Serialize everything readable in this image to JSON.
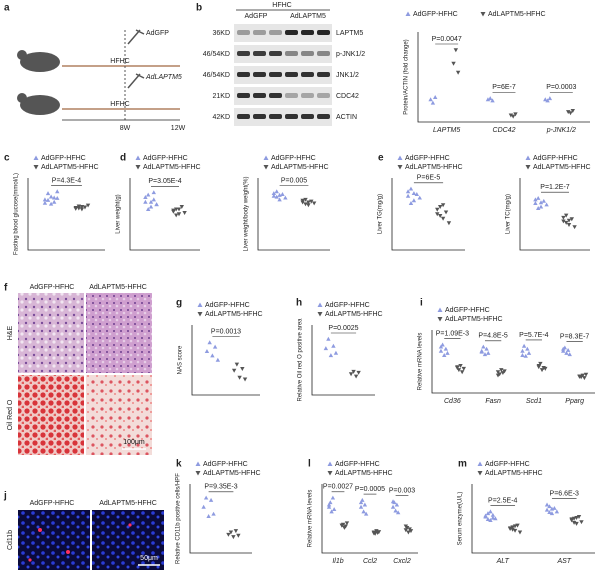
{
  "figure": {
    "panels": {
      "a": {
        "letter": "a",
        "diet_top": "HFHC",
        "virus_top": "AdGFP",
        "diet_bottom": "HFHC",
        "virus_bottom": "AdLAPTM5",
        "start": "8W",
        "end": "12W"
      },
      "b": {
        "letter": "b",
        "header": "HFHC",
        "groups": [
          "AdGFP",
          "AdLAPTM5"
        ],
        "kd": [
          "36KD",
          "46/54KD",
          "46/54KD",
          "21KD",
          "42KD"
        ],
        "proteins": [
          "LAPTM5",
          "p-JNK1/2",
          "JNK1/2",
          "CDC42",
          "ACTIN"
        ]
      },
      "f": {
        "letter": "f",
        "columns": [
          "AdGFP-HFHC",
          "AdLAPTM5-HFHC"
        ],
        "rows": [
          "H&E",
          "Oil Red O"
        ],
        "scale": "100μm"
      },
      "j": {
        "letter": "j",
        "columns": [
          "AdGFP-HFHC",
          "AdLAPTM5-HFHC"
        ],
        "row": "Cd11b",
        "scale": "50μm"
      }
    },
    "plots": [
      {
        "type": "scatter",
        "ylabel": "Protein/ACTIN (fold change)",
        "ylim": [
          0,
          4
        ],
        "categories": [
          "LAPTM5",
          "CDC42",
          "p-JNK1/2"
        ],
        "pvalues": [
          "P=0.0047",
          "P=6E-7",
          "P=0.0003"
        ],
        "series": [
          {
            "name": "AdGFP-HFHC",
            "color": "#8e9be0",
            "values": [
              [
                1.0,
                0.85,
                1.1
              ],
              [
                1.0,
                1.05,
                0.95
              ],
              [
                1.0,
                0.95,
                1.05
              ]
            ]
          },
          {
            "name": "AdLAPTM5-HFHC",
            "color": "#555555",
            "values": [
              [
                2.6,
                3.2,
                2.2
              ],
              [
                0.3,
                0.25,
                0.35
              ],
              [
                0.45,
                0.4,
                0.5
              ]
            ]
          }
        ]
      },
      {
        "type": "scatter",
        "letter": "c",
        "ylabel": "Fasting blood glucose(mmol/L)",
        "ylim": [
          0,
          15
        ],
        "pvalues": [
          "P=4.3E-4"
        ],
        "series": [
          {
            "name": "AdGFP-HFHC",
            "color": "#8e9be0",
            "values": [
              [
                10.5,
                11.8,
                9.6,
                10.9,
                12.2,
                9.8,
                10.4,
                11.1,
                10.0,
                10.8
              ]
            ]
          },
          {
            "name": "AdLAPTM5-HFHC",
            "color": "#555555",
            "values": [
              [
                8.8,
                9.1,
                8.5,
                8.9,
                9.3,
                8.6,
                8.7,
                9.0
              ]
            ]
          }
        ]
      },
      {
        "type": "scatter",
        "letter": "d",
        "ylabel": "Liver weight(g)",
        "ylim": [
          0,
          3
        ],
        "pvalues": [
          "P=3.05E-4"
        ],
        "series": [
          {
            "name": "AdGFP-HFHC",
            "color": "#8e9be0",
            "values": [
              [
                2.0,
                2.3,
                1.8,
                2.1,
                1.9,
                2.2,
                1.7,
                2.0,
                2.4,
                1.9
              ]
            ]
          },
          {
            "name": "AdLAPTM5-HFHC",
            "color": "#555555",
            "values": [
              [
                1.6,
                1.7,
                1.5,
                1.8,
                1.55,
                1.65,
                1.45,
                1.7
              ]
            ]
          }
        ]
      },
      {
        "type": "scatter",
        "ylabel": "Liver weight/body weight(%)",
        "ylim": [
          0,
          8
        ],
        "pvalues": [
          "P=0.005"
        ],
        "series": [
          {
            "name": "AdGFP-HFHC",
            "color": "#8e9be0",
            "values": [
              [
                6.0,
                6.5,
                5.6,
                6.2,
                5.8,
                6.3,
                5.9,
                6.1
              ]
            ]
          },
          {
            "name": "AdLAPTM5-HFHC",
            "color": "#555555",
            "values": [
              [
                5.3,
                5.6,
                5.0,
                5.4,
                5.2,
                5.5,
                5.1,
                5.3
              ]
            ]
          }
        ]
      },
      {
        "type": "scatter",
        "letter": "e",
        "ylabel": "Liver TG(mg/g)",
        "ylim": [
          0,
          80
        ],
        "pvalues": [
          "P=6E-5"
        ],
        "series": [
          {
            "name": "AdGFP-HFHC",
            "color": "#8e9be0",
            "values": [
              [
                60,
                68,
                55,
                62,
                58,
                65,
                52,
                63
              ]
            ]
          },
          {
            "name": "AdLAPTM5-HFHC",
            "color": "#555555",
            "values": [
              [
                40,
                48,
                35,
                42,
                30,
                45,
                38,
                50
              ]
            ]
          }
        ]
      },
      {
        "type": "scatter",
        "ylabel": "Liver TC(mg/g)",
        "ylim": [
          0,
          10
        ],
        "pvalues": [
          "P=1.2E-7"
        ],
        "series": [
          {
            "name": "AdGFP-HFHC",
            "color": "#8e9be0",
            "values": [
              [
                6.5,
                7.2,
                6.0,
                6.8,
                6.3,
                7.0,
                5.8,
                6.6
              ]
            ]
          },
          {
            "name": "AdLAPTM5-HFHC",
            "color": "#555555",
            "values": [
              [
                4.0,
                4.8,
                3.5,
                4.3,
                3.2,
                4.5,
                3.8,
                4.1
              ]
            ]
          }
        ]
      },
      {
        "type": "scatter",
        "letter": "g",
        "ylabel": "NAS score",
        "ylim": [
          0,
          8
        ],
        "pvalues": [
          "P=0.0013"
        ],
        "series": [
          {
            "name": "AdGFP-HFHC",
            "color": "#8e9be0",
            "values": [
              [
                5,
                6,
                4.5,
                5.5,
                4
              ]
            ]
          },
          {
            "name": "AdLAPTM5-HFHC",
            "color": "#555555",
            "values": [
              [
                2.8,
                3.5,
                2,
                3,
                1.8
              ]
            ]
          }
        ]
      },
      {
        "type": "scatter",
        "letter": "h",
        "ylabel": "Relative Oil red O positive area",
        "ylim": [
          0,
          1.5
        ],
        "pvalues": [
          "P=0.0025"
        ],
        "series": [
          {
            "name": "AdGFP-HFHC",
            "color": "#8e9be0",
            "values": [
              [
                1.0,
                1.2,
                0.85,
                1.05,
                0.9
              ]
            ]
          },
          {
            "name": "AdLAPTM5-HFHC",
            "color": "#555555",
            "values": [
              [
                0.45,
                0.5,
                0.4,
                0.48
              ]
            ]
          }
        ]
      },
      {
        "type": "scatter",
        "letter": "i",
        "ylabel": "Relative mRNA levels",
        "ylim": [
          0,
          1.5
        ],
        "categories": [
          "Cd36",
          "Fasn",
          "Scd1",
          "Pparg"
        ],
        "pvalues": [
          "P=1.09E-3",
          "P=4.8E-5",
          "P=5.7E-4",
          "P=8.3E-7"
        ],
        "series": [
          {
            "name": "AdGFP-HFHC",
            "color": "#8e9be0",
            "values": [
              [
                1.0,
                1.15,
                0.9,
                1.05,
                0.95,
                1.1
              ],
              [
                1.0,
                1.1,
                0.92,
                1.05,
                0.95,
                0.98
              ],
              [
                1.0,
                1.12,
                0.88,
                1.05,
                0.95,
                0.9
              ],
              [
                1.0,
                1.08,
                0.95,
                1.02,
                0.92,
                1.05
              ]
            ]
          },
          {
            "name": "AdLAPTM5-HFHC",
            "color": "#555555",
            "values": [
              [
                0.6,
                0.55,
                0.65,
                0.5,
                0.58,
                0.62
              ],
              [
                0.5,
                0.45,
                0.55,
                0.48,
                0.52,
                0.42
              ],
              [
                0.62,
                0.7,
                0.55,
                0.6,
                0.58,
                0.65
              ],
              [
                0.4,
                0.38,
                0.42,
                0.36,
                0.44,
                0.39
              ]
            ]
          }
        ]
      },
      {
        "type": "scatter",
        "letter": "k",
        "ylabel": "Relative CD11b positive cells/HPF",
        "ylim": [
          0,
          1.5
        ],
        "pvalues": [
          "P=9.35E-3"
        ],
        "series": [
          {
            "name": "AdGFP-HFHC",
            "color": "#8e9be0",
            "values": [
              [
                1.0,
                1.2,
                0.8,
                1.15,
                0.85
              ]
            ]
          },
          {
            "name": "AdLAPTM5-HFHC",
            "color": "#555555",
            "values": [
              [
                0.4,
                0.45,
                0.35,
                0.48,
                0.38
              ]
            ]
          }
        ]
      },
      {
        "type": "scatter",
        "letter": "l",
        "ylabel": "Relative mRNA levels",
        "ylim": [
          0,
          1.5
        ],
        "categories": [
          "Il1b",
          "Ccl2",
          "Cxcl2"
        ],
        "pvalues": [
          "P=0.0027",
          "P=0.0005",
          "P=0.003"
        ],
        "series": [
          {
            "name": "AdGFP-HFHC",
            "color": "#8e9be0",
            "values": [
              [
                1.0,
                1.1,
                0.9,
                1.2,
                0.95,
                1.05
              ],
              [
                1.0,
                1.15,
                0.9,
                1.05,
                0.85,
                1.1
              ],
              [
                1.0,
                1.1,
                0.92,
                1.05,
                0.88,
                1.12
              ]
            ]
          },
          {
            "name": "AdLAPTM5-HFHC",
            "color": "#555555",
            "values": [
              [
                0.6,
                0.62,
                0.55,
                0.58,
                0.65,
                0.6
              ],
              [
                0.45,
                0.42,
                0.48,
                0.44,
                0.46,
                0.43
              ],
              [
                0.5,
                0.55,
                0.45,
                0.52,
                0.48,
                0.58
              ]
            ]
          }
        ]
      },
      {
        "type": "scatter",
        "letter": "m",
        "ylabel": "Serum enzyme(U/L)",
        "ylim": [
          0,
          200
        ],
        "categories": [
          "ALT",
          "AST"
        ],
        "pvalues": [
          "P=2.5E-4",
          "P=6.6E-3"
        ],
        "series": [
          {
            "name": "AdGFP-HFHC",
            "color": "#8e9be0",
            "values": [
              [
                105,
                115,
                95,
                110,
                100,
                108,
                98,
                120,
                102
              ],
              [
                125,
                135,
                115,
                130,
                120,
                140,
                118,
                128
              ]
            ]
          },
          {
            "name": "AdLAPTM5-HFHC",
            "color": "#555555",
            "values": [
              [
                70,
                75,
                65,
                80,
                60,
                72,
                68,
                78
              ],
              [
                95,
                100,
                85,
                105,
                90,
                98,
                88,
                102
              ]
            ]
          }
        ]
      }
    ]
  }
}
